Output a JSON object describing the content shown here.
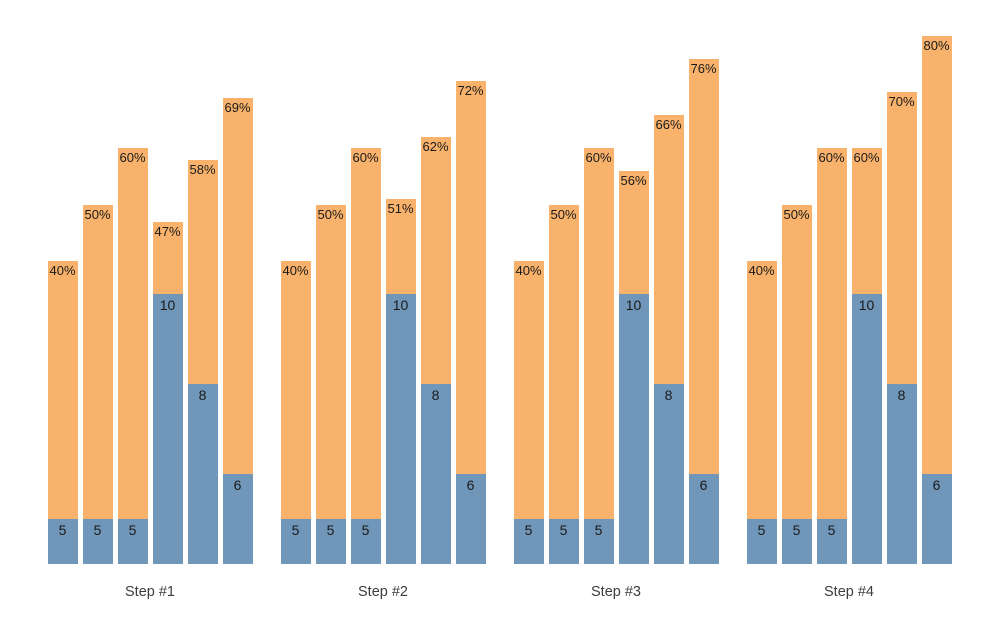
{
  "chart_data": {
    "type": "bar",
    "subtype": "grouped-stacked",
    "title": "",
    "xlabel": "",
    "ylabel": "",
    "legend_position": "none",
    "grid": false,
    "axes_visible": false,
    "background_color": "#ffffff",
    "colors": {
      "base_segment": "#7096b9",
      "top_segment": "#f9b26b",
      "segment_label": "#1a1a1a",
      "group_label": "#3d3d3d"
    },
    "categories": [
      "Step #1",
      "Step #2",
      "Step #3",
      "Step #4"
    ],
    "base_values_per_group": [
      5,
      5,
      5,
      10,
      8,
      6
    ],
    "groups": [
      {
        "label": "Step #1",
        "bars": [
          {
            "base_value": 5,
            "base_label": "5",
            "percent": 40,
            "percent_label": "40%"
          },
          {
            "base_value": 5,
            "base_label": "5",
            "percent": 50,
            "percent_label": "50%"
          },
          {
            "base_value": 5,
            "base_label": "5",
            "percent": 60,
            "percent_label": "60%"
          },
          {
            "base_value": 10,
            "base_label": "10",
            "percent": 47,
            "percent_label": "47%"
          },
          {
            "base_value": 8,
            "base_label": "8",
            "percent": 58,
            "percent_label": "58%"
          },
          {
            "base_value": 6,
            "base_label": "6",
            "percent": 69,
            "percent_label": "69%"
          }
        ]
      },
      {
        "label": "Step #2",
        "bars": [
          {
            "base_value": 5,
            "base_label": "5",
            "percent": 40,
            "percent_label": "40%"
          },
          {
            "base_value": 5,
            "base_label": "5",
            "percent": 50,
            "percent_label": "50%"
          },
          {
            "base_value": 5,
            "base_label": "5",
            "percent": 60,
            "percent_label": "60%"
          },
          {
            "base_value": 10,
            "base_label": "10",
            "percent": 51,
            "percent_label": "51%"
          },
          {
            "base_value": 8,
            "base_label": "8",
            "percent": 62,
            "percent_label": "62%"
          },
          {
            "base_value": 6,
            "base_label": "6",
            "percent": 72,
            "percent_label": "72%"
          }
        ]
      },
      {
        "label": "Step #3",
        "bars": [
          {
            "base_value": 5,
            "base_label": "5",
            "percent": 40,
            "percent_label": "40%"
          },
          {
            "base_value": 5,
            "base_label": "5",
            "percent": 50,
            "percent_label": "50%"
          },
          {
            "base_value": 5,
            "base_label": "5",
            "percent": 60,
            "percent_label": "60%"
          },
          {
            "base_value": 10,
            "base_label": "10",
            "percent": 56,
            "percent_label": "56%"
          },
          {
            "base_value": 8,
            "base_label": "8",
            "percent": 66,
            "percent_label": "66%"
          },
          {
            "base_value": 6,
            "base_label": "6",
            "percent": 76,
            "percent_label": "76%"
          }
        ]
      },
      {
        "label": "Step #4",
        "bars": [
          {
            "base_value": 5,
            "base_label": "5",
            "percent": 40,
            "percent_label": "40%"
          },
          {
            "base_value": 5,
            "base_label": "5",
            "percent": 50,
            "percent_label": "50%"
          },
          {
            "base_value": 5,
            "base_label": "5",
            "percent": 60,
            "percent_label": "60%"
          },
          {
            "base_value": 10,
            "base_label": "10",
            "percent": 60,
            "percent_label": "60%"
          },
          {
            "base_value": 8,
            "base_label": "8",
            "percent": 70,
            "percent_label": "70%"
          },
          {
            "base_value": 6,
            "base_label": "6",
            "percent": 80,
            "percent_label": "80%"
          }
        ]
      }
    ]
  }
}
